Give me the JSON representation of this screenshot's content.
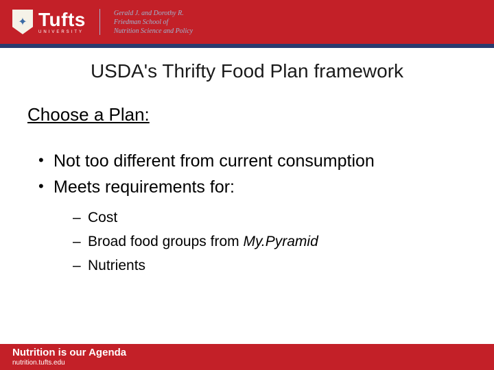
{
  "header": {
    "logo_main": "Tufts",
    "logo_sub": "UNIVERSITY",
    "school_line1": "Gerald J. and Dorothy R.",
    "school_line2": "Friedman School of",
    "school_line3": "Nutrition Science and Policy"
  },
  "slide": {
    "title": "USDA's Thrifty Food Plan framework",
    "section": "Choose a Plan:",
    "bullets": [
      "Not too different from current consumption",
      "Meets requirements for:"
    ],
    "sub_bullets": [
      {
        "prefix": "Cost",
        "italic": ""
      },
      {
        "prefix": "Broad food groups from ",
        "italic": "My.Pyramid"
      },
      {
        "prefix": "Nutrients",
        "italic": ""
      }
    ]
  },
  "footer": {
    "tagline": "Nutrition is our Agenda",
    "url": "nutrition.tufts.edu"
  },
  "colors": {
    "header_bg": "#c32028",
    "blue_bar": "#2a3a6e",
    "school_text": "#9fb5d0",
    "body_text": "#000000",
    "background": "#ffffff"
  }
}
